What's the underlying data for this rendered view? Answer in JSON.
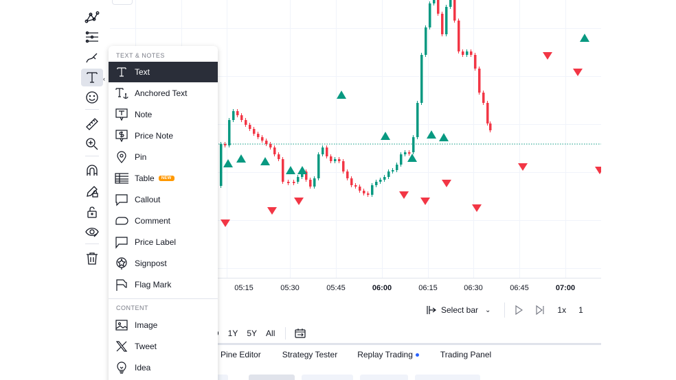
{
  "toolbar": {
    "tools": [
      {
        "name": "patterns-tool",
        "icon": "nodes-icon"
      },
      {
        "name": "projection-tool",
        "icon": "projection-icon"
      },
      {
        "name": "brush-tool",
        "icon": "brush-icon"
      },
      {
        "name": "text-tool",
        "icon": "text-icon",
        "active": true
      },
      {
        "name": "icon-tool",
        "icon": "smiley-icon"
      },
      {
        "name": "measure-tool",
        "icon": "ruler-icon"
      },
      {
        "name": "zoom-tool",
        "icon": "zoom-in-icon"
      },
      {
        "name": "magnet-tool",
        "icon": "magnet-icon"
      },
      {
        "name": "lock-drawings-tool",
        "icon": "pencil-lock-icon"
      },
      {
        "name": "lock-tool",
        "icon": "unlock-icon"
      },
      {
        "name": "hide-tool",
        "icon": "eye-icon"
      },
      {
        "name": "remove-tool",
        "icon": "trash-icon"
      }
    ]
  },
  "menu": {
    "section_text": "TEXT & NOTES",
    "items": [
      {
        "label": "Text",
        "icon": "text-icon",
        "selected": true
      },
      {
        "label": "Anchored Text",
        "icon": "anchored-text-icon"
      },
      {
        "label": "Note",
        "icon": "note-icon"
      },
      {
        "label": "Price Note",
        "icon": "price-note-icon"
      },
      {
        "label": "Pin",
        "icon": "pin-icon"
      },
      {
        "label": "Table",
        "icon": "table-icon",
        "badge": "NEW"
      },
      {
        "label": "Callout",
        "icon": "callout-icon"
      },
      {
        "label": "Comment",
        "icon": "comment-icon"
      },
      {
        "label": "Price Label",
        "icon": "price-label-icon"
      },
      {
        "label": "Signpost",
        "icon": "signpost-icon"
      },
      {
        "label": "Flag Mark",
        "icon": "flag-icon"
      }
    ],
    "section_content": "CONTENT",
    "content_items": [
      {
        "label": "Image",
        "icon": "image-icon"
      },
      {
        "label": "Tweet",
        "icon": "x-icon"
      },
      {
        "label": "Idea",
        "icon": "lightbulb-icon"
      }
    ]
  },
  "chart": {
    "time_labels": [
      {
        "label": "05:15",
        "bold": false
      },
      {
        "label": "05:30",
        "bold": false
      },
      {
        "label": "05:45",
        "bold": false
      },
      {
        "label": "06:00",
        "bold": true
      },
      {
        "label": "06:15",
        "bold": false
      },
      {
        "label": "06:30",
        "bold": false
      },
      {
        "label": "06:45",
        "bold": false
      },
      {
        "label": "07:00",
        "bold": true
      }
    ],
    "colors": {
      "up": "#089981",
      "down": "#f23645",
      "line": "#089981"
    }
  },
  "replay": {
    "select_bar": "Select bar",
    "speed": "1x",
    "speed_trailing": "1"
  },
  "range": {
    "items": [
      "D",
      "1Y",
      "5Y",
      "All"
    ]
  },
  "bottom_tabs": {
    "items": [
      "Pine Editor",
      "Strategy Tester",
      "Replay Trading",
      "Trading Panel"
    ]
  }
}
